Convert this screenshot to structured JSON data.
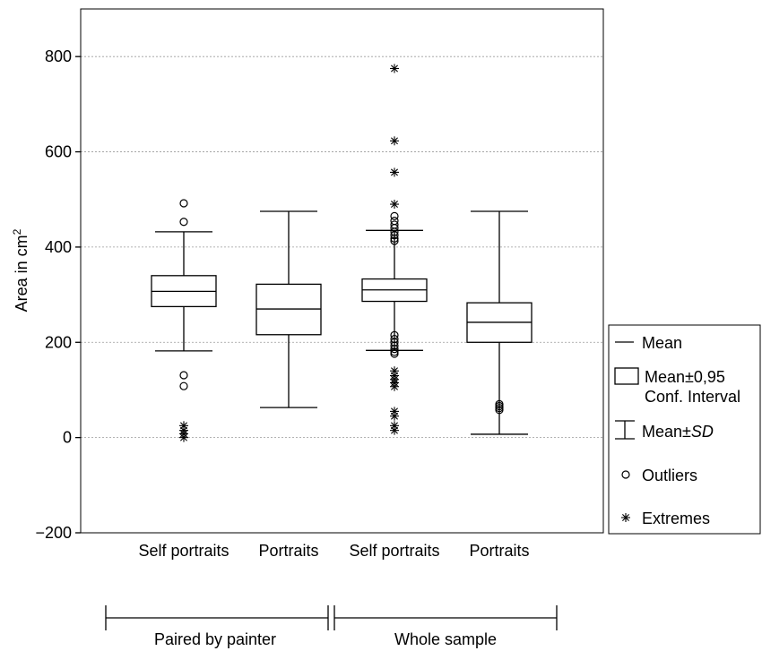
{
  "chart_data": {
    "type": "box",
    "ylabel": "Area in cm",
    "ylabel_superscript": "2",
    "ylim": [
      -200,
      900
    ],
    "yticks": [
      -200,
      0,
      200,
      400,
      600,
      800
    ],
    "grid": "horizontal",
    "categories": [
      "Self portraits",
      "Portraits",
      "Self portraits",
      "Portraits"
    ],
    "groups": [
      {
        "label": "Paired by painter",
        "categories": [
          0,
          1
        ]
      },
      {
        "label": "Whole sample",
        "categories": [
          2,
          3
        ]
      }
    ],
    "boxes": [
      {
        "mean": 307,
        "ci_low": 275,
        "ci_high": 340,
        "sd_low": 182,
        "sd_high": 432,
        "outliers": [
          492,
          453,
          131,
          108
        ],
        "extremes": [
          25,
          15,
          8,
          0
        ]
      },
      {
        "mean": 270,
        "ci_low": 216,
        "ci_high": 322,
        "sd_low": 63,
        "sd_high": 475,
        "outliers": [],
        "extremes": []
      },
      {
        "mean": 310,
        "ci_low": 286,
        "ci_high": 333,
        "sd_low": 183,
        "sd_high": 435,
        "outliers": [
          465,
          455,
          447,
          440,
          432,
          425,
          418,
          413,
          215,
          207,
          200,
          193,
          186,
          180,
          176
        ],
        "extremes": [
          775,
          623,
          557,
          490,
          140,
          130,
          122,
          115,
          107,
          55,
          45,
          25,
          15
        ]
      },
      {
        "mean": 242,
        "ci_low": 200,
        "ci_high": 283,
        "sd_low": 7,
        "sd_high": 475,
        "outliers": [
          70,
          66,
          62,
          58
        ],
        "extremes": []
      }
    ],
    "legend": {
      "position": "right",
      "items": [
        {
          "symbol": "line",
          "label": "Mean"
        },
        {
          "symbol": "box",
          "label": "Mean±0,95",
          "label2": "Conf. Interval"
        },
        {
          "symbol": "whisker",
          "label": "Mean±",
          "label_italic": "SD"
        },
        {
          "symbol": "circle",
          "label": "Outliers"
        },
        {
          "symbol": "asterisk",
          "label": "Extremes"
        }
      ]
    }
  }
}
